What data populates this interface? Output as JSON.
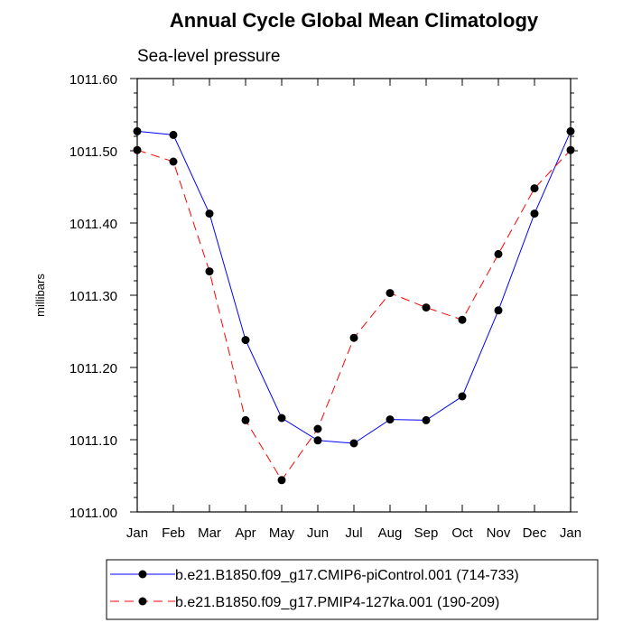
{
  "chart_data": {
    "type": "line",
    "title": "Annual Cycle Global Mean Climatology",
    "subtitle": "Sea-level pressure",
    "ylabel": "millibars",
    "xlabel": "",
    "categories": [
      "Jan",
      "Feb",
      "Mar",
      "Apr",
      "May",
      "Jun",
      "Jul",
      "Aug",
      "Sep",
      "Oct",
      "Nov",
      "Dec",
      "Jan"
    ],
    "ylim": [
      1011.0,
      1011.6
    ],
    "y_ticks": [
      "1011.00",
      "1011.10",
      "1011.20",
      "1011.30",
      "1011.40",
      "1011.50",
      "1011.60"
    ],
    "grid": false,
    "legend_position": "bottom",
    "series": [
      {
        "name": "b.e21.B1850.f09_g17.CMIP6-piControl.001 (714-733)",
        "color": "#0000ff",
        "line_style": "solid",
        "marker": "filled-circle",
        "values": [
          1011.527,
          1011.522,
          1011.413,
          1011.238,
          1011.13,
          1011.099,
          1011.095,
          1011.128,
          1011.127,
          1011.16,
          1011.279,
          1011.413,
          1011.527
        ]
      },
      {
        "name": "b.e21.B1850.f09_g17.PMIP4-127ka.001 (190-209)",
        "color": "#ff0000",
        "line_style": "dashed",
        "marker": "filled-circle",
        "values": [
          1011.501,
          1011.485,
          1011.333,
          1011.127,
          1011.044,
          1011.115,
          1011.241,
          1011.303,
          1011.283,
          1011.266,
          1011.357,
          1011.448,
          1011.501
        ]
      }
    ]
  }
}
